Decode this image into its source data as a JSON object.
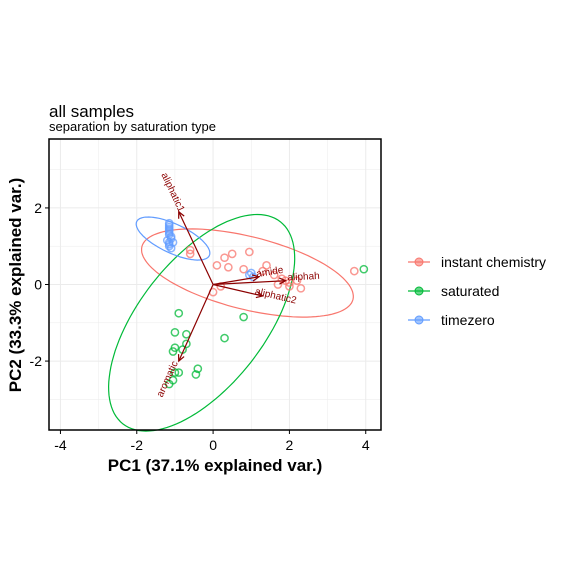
{
  "chart_data": {
    "type": "scatter",
    "title": "all samples",
    "subtitle": "separation by saturation type",
    "xlabel": "PC1 (37.1% explained var.)",
    "ylabel": "PC2 (33.3% explained var.)",
    "xlim": [
      -4.3,
      4.4
    ],
    "ylim": [
      -3.8,
      3.8
    ],
    "xticks": [
      -4,
      -2,
      0,
      2,
      4
    ],
    "yticks": [
      -2,
      0,
      2
    ],
    "grid": true,
    "legend_position": "right",
    "series": [
      {
        "name": "instant chemistry",
        "color": "#F8766D",
        "points": [
          [
            -0.6,
            0.9
          ],
          [
            -0.6,
            0.8
          ],
          [
            0.3,
            0.7
          ],
          [
            0.5,
            0.8
          ],
          [
            0.4,
            0.45
          ],
          [
            0.8,
            0.4
          ],
          [
            0.95,
            0.85
          ],
          [
            1.4,
            0.5
          ],
          [
            1.3,
            0.35
          ],
          [
            1.6,
            0.25
          ],
          [
            1.8,
            0.15
          ],
          [
            1.9,
            0.1
          ],
          [
            2.0,
            -0.05
          ],
          [
            2.2,
            0.1
          ],
          [
            2.3,
            -0.1
          ],
          [
            2.0,
            0.05
          ],
          [
            1.7,
            0.0
          ],
          [
            3.7,
            0.35
          ],
          [
            0.0,
            -0.2
          ],
          [
            0.2,
            -0.05
          ],
          [
            0.1,
            0.5
          ]
        ],
        "ellipse": {
          "cx": 0.9,
          "cy": 0.3,
          "rx": 2.85,
          "ry": 0.95,
          "angle_deg": -14
        }
      },
      {
        "name": "saturated",
        "color": "#00BA38",
        "points": [
          [
            3.95,
            0.4
          ],
          [
            0.8,
            -0.85
          ],
          [
            0.3,
            -1.4
          ],
          [
            -0.9,
            -0.75
          ],
          [
            -1.0,
            -1.25
          ],
          [
            -0.7,
            -1.3
          ],
          [
            -0.7,
            -1.55
          ],
          [
            -0.8,
            -1.7
          ],
          [
            -1.0,
            -1.65
          ],
          [
            -1.05,
            -1.75
          ],
          [
            -0.4,
            -2.2
          ],
          [
            -0.45,
            -2.35
          ],
          [
            -1.0,
            -2.3
          ],
          [
            -1.05,
            -2.5
          ],
          [
            -1.15,
            -2.6
          ],
          [
            -0.9,
            -2.3
          ]
        ],
        "ellipse": {
          "cx": -0.3,
          "cy": -1.0,
          "rx": 3.35,
          "ry": 1.65,
          "angle_deg": 52
        }
      },
      {
        "name": "timezero",
        "color": "#619CFF",
        "points": [
          [
            -1.15,
            1.6
          ],
          [
            -1.15,
            1.5
          ],
          [
            -1.15,
            1.4
          ],
          [
            -1.15,
            1.3
          ],
          [
            -1.1,
            1.2
          ],
          [
            -1.15,
            1.1
          ],
          [
            -1.15,
            1.0
          ],
          [
            -1.1,
            0.95
          ],
          [
            -1.15,
            1.05
          ],
          [
            -1.2,
            1.15
          ],
          [
            -1.1,
            1.25
          ],
          [
            -1.15,
            1.35
          ],
          [
            -1.15,
            1.45
          ],
          [
            -1.15,
            1.55
          ],
          [
            -1.05,
            1.1
          ],
          [
            1.0,
            0.3
          ],
          [
            0.95,
            0.25
          ],
          [
            1.05,
            0.2
          ]
        ],
        "ellipse": {
          "cx": -1.05,
          "cy": 1.2,
          "rx": 1.05,
          "ry": 0.38,
          "angle_deg": -25
        }
      }
    ],
    "loadings": [
      {
        "label": "aliphatic1",
        "x": -0.9,
        "y": 1.9
      },
      {
        "label": "amide",
        "x": 1.2,
        "y": 0.2
      },
      {
        "label": "aliphah",
        "x": 1.9,
        "y": 0.1
      },
      {
        "label": "aliphatic2",
        "x": 1.3,
        "y": -0.3
      },
      {
        "label": "aromatic",
        "x": -0.9,
        "y": -2.0
      }
    ],
    "loading_color": "#8B0000"
  }
}
